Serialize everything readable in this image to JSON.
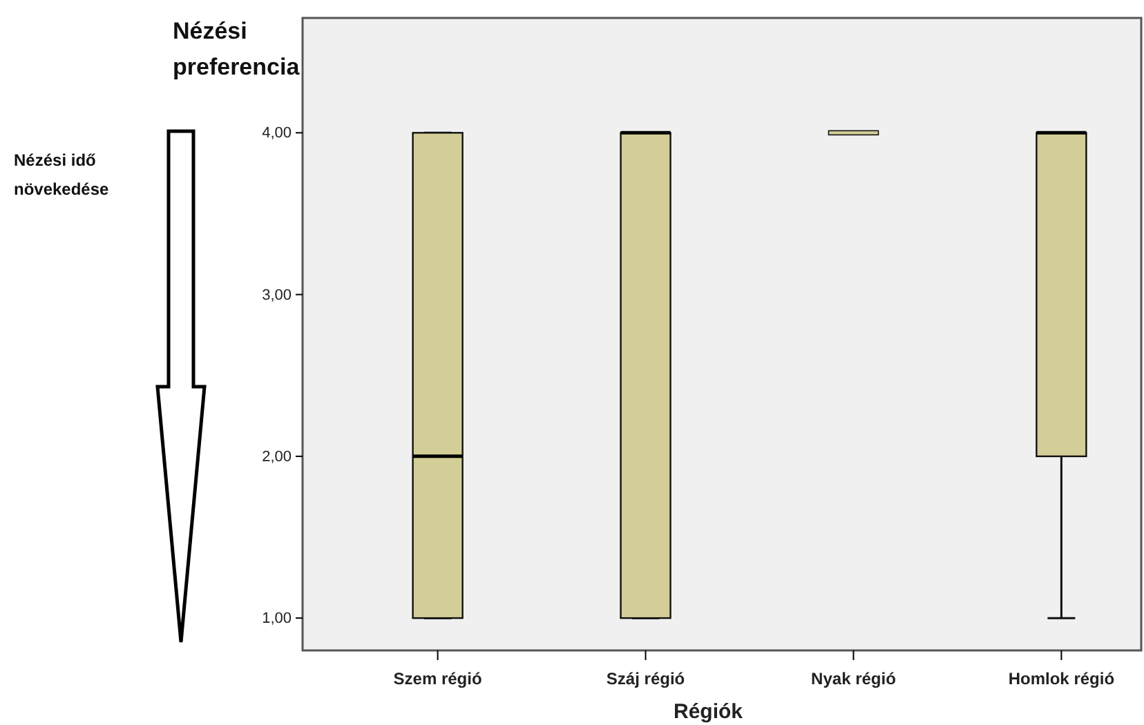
{
  "chart_data": {
    "type": "box",
    "ylabel": "Nézési preferencia",
    "xlabel": "Régiók",
    "categories": [
      "Szem régió",
      "Száj régió",
      "Nyak régió",
      "Homlok régió"
    ],
    "boxes": [
      {
        "low": 1,
        "q1": 1,
        "median": 2,
        "q3": 4,
        "high": 4
      },
      {
        "low": 1,
        "q1": 1,
        "median": 4,
        "q3": 4,
        "high": 4
      },
      {
        "low": 4,
        "q1": 4,
        "median": 4,
        "q3": 4,
        "high": 4
      },
      {
        "low": 1,
        "q1": 2,
        "median": 4,
        "q3": 4,
        "high": 4
      }
    ],
    "color": "#d3ce97",
    "ylim": [
      0.8,
      4.71
    ],
    "yticks": [
      {
        "value": 1,
        "label": "1,00"
      },
      {
        "value": 2,
        "label": "2,00"
      },
      {
        "value": 3,
        "label": "3,00"
      },
      {
        "value": 4,
        "label": "4,00"
      }
    ],
    "grid": false,
    "annotations": [
      "Nézési idő növekedése"
    ]
  }
}
